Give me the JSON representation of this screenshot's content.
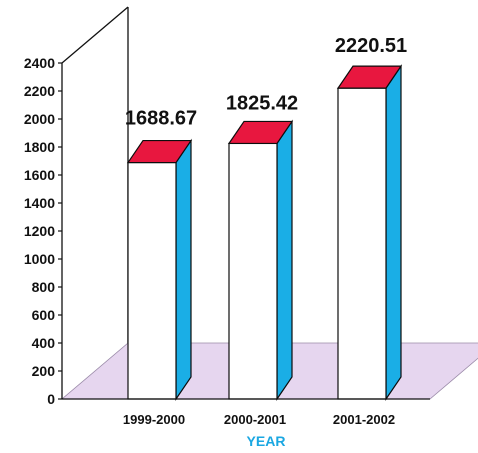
{
  "chart_data": {
    "type": "bar",
    "categories": [
      "1999-2000",
      "2000-2001",
      "2001-2002"
    ],
    "values": [
      1688.67,
      1825.42,
      2220.51
    ],
    "data_labels": [
      "1688.67",
      "1825.42",
      "2220.51"
    ],
    "ylim": [
      0,
      2400
    ],
    "yticks": [
      "0",
      "200",
      "400",
      "600",
      "800",
      "1000",
      "1200",
      "1400",
      "1600",
      "1800",
      "2000",
      "2200",
      "2400"
    ],
    "xlabel": "YEAR",
    "ylabel": "",
    "title": "",
    "grid": false,
    "legend": "none",
    "style": "3d"
  },
  "colors": {
    "bar_front": "#ffffff",
    "bar_top": "#e8173f",
    "bar_side": "#1aaee6",
    "floor": "#e6d6ef",
    "xlabel": "#1aa7e2",
    "axis": "#111111"
  }
}
